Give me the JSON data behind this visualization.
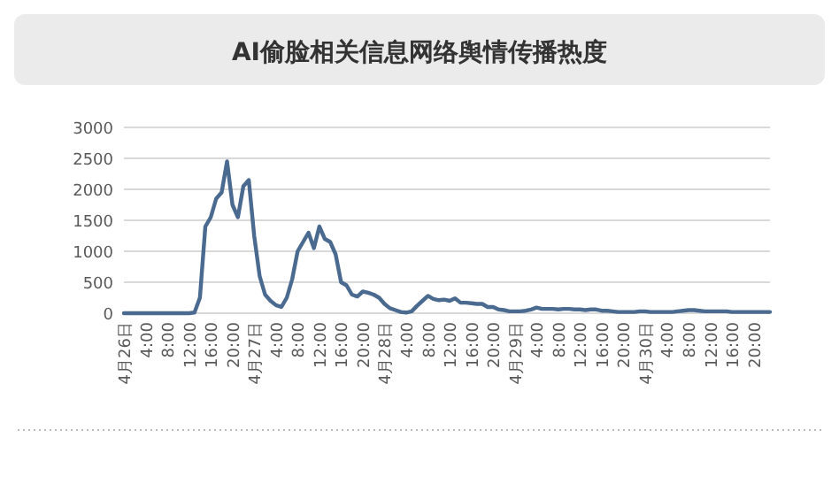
{
  "chart_data": {
    "type": "line",
    "title": "AI偷脸相关信息网络舆情传播热度",
    "categories": [
      "4月26日",
      null,
      null,
      null,
      "4:00",
      null,
      null,
      null,
      "8:00",
      null,
      null,
      null,
      "12:00",
      null,
      null,
      null,
      "16:00",
      null,
      null,
      null,
      "20:00",
      null,
      null,
      null,
      "4月27日",
      null,
      null,
      null,
      "4:00",
      null,
      null,
      null,
      "8:00",
      null,
      null,
      null,
      "12:00",
      null,
      null,
      null,
      "16:00",
      null,
      null,
      null,
      "20:00",
      null,
      null,
      null,
      "4月28日",
      null,
      null,
      null,
      "4:00",
      null,
      null,
      null,
      "8:00",
      null,
      null,
      null,
      "12:00",
      null,
      null,
      null,
      "16:00",
      null,
      null,
      null,
      "20:00",
      null,
      null,
      null,
      "4月29日",
      null,
      null,
      null,
      "4:00",
      null,
      null,
      null,
      "8:00",
      null,
      null,
      null,
      "12:00",
      null,
      null,
      null,
      "16:00",
      null,
      null,
      null,
      "20:00",
      null,
      null,
      null,
      "4月30日",
      null,
      null,
      null,
      "4:00",
      null,
      null,
      null,
      "8:00",
      null,
      null,
      null,
      "12:00",
      null,
      null,
      null,
      "16:00",
      null,
      null,
      null,
      "20:00",
      null,
      null,
      null
    ],
    "series": [
      {
        "color": "#4a6a90",
        "values": [
          0,
          0,
          0,
          0,
          0,
          0,
          0,
          0,
          0,
          0,
          0,
          0,
          0,
          10,
          250,
          1400,
          1550,
          1850,
          1950,
          2450,
          1750,
          1550,
          2050,
          2150,
          1250,
          600,
          300,
          200,
          130,
          100,
          250,
          550,
          1000,
          1150,
          1300,
          1050,
          1400,
          1200,
          1150,
          950,
          500,
          450,
          300,
          270,
          350,
          330,
          300,
          250,
          150,
          80,
          50,
          20,
          10,
          30,
          120,
          200,
          280,
          230,
          210,
          220,
          200,
          240,
          170,
          170,
          160,
          150,
          150,
          100,
          100,
          60,
          50,
          30,
          30,
          30,
          40,
          60,
          90,
          70,
          70,
          70,
          60,
          70,
          70,
          60,
          60,
          50,
          60,
          60,
          40,
          40,
          30,
          20,
          20,
          20,
          20,
          30,
          30,
          20,
          20,
          20,
          20,
          20,
          30,
          40,
          50,
          50,
          40,
          30,
          30,
          30,
          30,
          30,
          20,
          20,
          20,
          20,
          20,
          20,
          20,
          20
        ]
      }
    ],
    "ylim": [
      0,
      3000
    ],
    "yticks": [
      0,
      500,
      1000,
      1500,
      2000,
      2500,
      3000
    ],
    "grid": "y"
  }
}
